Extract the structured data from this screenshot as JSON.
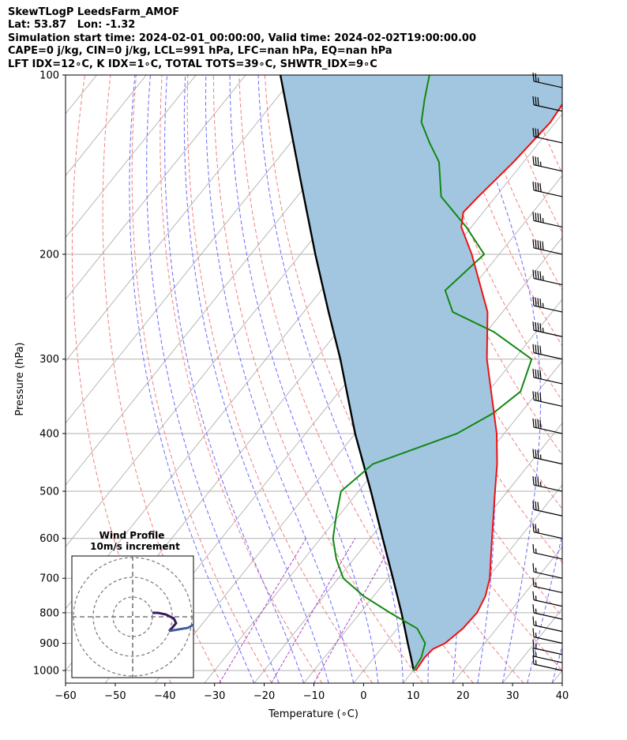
{
  "header": {
    "line1": "SkewTLogP LeedsFarm_AMOF",
    "line2": "Lat: 53.87   Lon: -1.32",
    "line3": "Simulation start time: 2024-02-01_00:00:00, Valid time: 2024-02-02T19:00:00.00",
    "line4": "CAPE=0 j/kg, CIN=0 j/kg, LCL=991 hPa, LFC=nan hPa, EQ=nan hPa",
    "line5": "LFT IDX=12∘C, K IDX=1∘C, TOTAL TOTS=39∘C, SHWTR_IDX=9∘C"
  },
  "chart_data": {
    "type": "line",
    "chart_kind": "skew-T log-P diagram",
    "xlabel": "Temperature (∘C)",
    "ylabel": "Pressure (hPa)",
    "xlim": [
      -60,
      40
    ],
    "ylim": [
      1050,
      100
    ],
    "y_scale": "log",
    "x_ticks": [
      "−60",
      "−50",
      "−40",
      "−30",
      "−20",
      "−10",
      "0",
      "10",
      "20",
      "30",
      "40"
    ],
    "y_ticks": [
      "100",
      "200",
      "300",
      "400",
      "500",
      "600",
      "700",
      "800",
      "900",
      "1000"
    ],
    "grid": true,
    "colors": {
      "temperature": "#ee1111",
      "dewpoint": "#118811",
      "parcel": "#000000",
      "cape_shading": "#a3c6e0",
      "dry_adiabats": "#f08080",
      "moist_adiabats": "#6a6aff",
      "mixing_ratio": "#aa44cc",
      "isotherms": "#aaaaaa"
    },
    "series": [
      {
        "name": "temperature",
        "points": [
          [
            1000,
            10.5
          ],
          [
            950,
            10.2
          ],
          [
            920,
            10.5
          ],
          [
            900,
            12.0
          ],
          [
            850,
            13.2
          ],
          [
            800,
            13.5
          ],
          [
            750,
            12.5
          ],
          [
            700,
            10.5
          ],
          [
            600,
            4.5
          ],
          [
            500,
            -2.5
          ],
          [
            450,
            -6.5
          ],
          [
            400,
            -11.5
          ],
          [
            350,
            -18.0
          ],
          [
            300,
            -25.5
          ],
          [
            250,
            -33.0
          ],
          [
            200,
            -45.5
          ],
          [
            180,
            -52.0
          ],
          [
            170,
            -54.0
          ],
          [
            160,
            -53.5
          ],
          [
            140,
            -52.0
          ],
          [
            120,
            -51.0
          ],
          [
            105,
            -52.0
          ],
          [
            100,
            -54.0
          ]
        ]
      },
      {
        "name": "dewpoint",
        "points": [
          [
            1000,
            10.0
          ],
          [
            950,
            9.5
          ],
          [
            900,
            8.0
          ],
          [
            850,
            4.0
          ],
          [
            800,
            -4.0
          ],
          [
            750,
            -12.0
          ],
          [
            700,
            -19.0
          ],
          [
            650,
            -23.5
          ],
          [
            600,
            -27.5
          ],
          [
            550,
            -30.5
          ],
          [
            500,
            -33.5
          ],
          [
            450,
            -31.5
          ],
          [
            400,
            -19.5
          ],
          [
            370,
            -15.5
          ],
          [
            340,
            -13.5
          ],
          [
            300,
            -16.5
          ],
          [
            270,
            -28.5
          ],
          [
            250,
            -40.0
          ],
          [
            230,
            -45.0
          ],
          [
            200,
            -43.0
          ],
          [
            180,
            -51.0
          ],
          [
            160,
            -61.0
          ],
          [
            140,
            -67.0
          ],
          [
            130,
            -72.0
          ],
          [
            120,
            -77.0
          ],
          [
            110,
            -80.0
          ],
          [
            100,
            -83.0
          ]
        ]
      },
      {
        "name": "parcel",
        "points": [
          [
            1000,
            10.2
          ],
          [
            991,
            9.6
          ],
          [
            950,
            7.4
          ],
          [
            900,
            4.5
          ],
          [
            850,
            1.5
          ],
          [
            800,
            -1.7
          ],
          [
            700,
            -9.0
          ],
          [
            600,
            -17.5
          ],
          [
            500,
            -27.5
          ],
          [
            400,
            -40.0
          ],
          [
            300,
            -55.0
          ],
          [
            250,
            -65.0
          ],
          [
            200,
            -77.0
          ],
          [
            150,
            -92.0
          ],
          [
            100,
            -113.0
          ]
        ]
      }
    ],
    "wind_barbs": {
      "pressures": [
        1000,
        970,
        940,
        900,
        860,
        820,
        780,
        740,
        700,
        650,
        600,
        550,
        500,
        450,
        400,
        360,
        330,
        300,
        275,
        250,
        225,
        200,
        180,
        160,
        145,
        130,
        115,
        105
      ],
      "speeds_kt": [
        15,
        15,
        15,
        15,
        15,
        15,
        15,
        15,
        15,
        15,
        25,
        30,
        35,
        35,
        40,
        40,
        40,
        40,
        45,
        45,
        45,
        50,
        45,
        40,
        35,
        30,
        30,
        25
      ]
    },
    "hodograph": {
      "title": "Wind Profile",
      "subtitle": "10m/s increment",
      "ring_count": 3
    }
  }
}
